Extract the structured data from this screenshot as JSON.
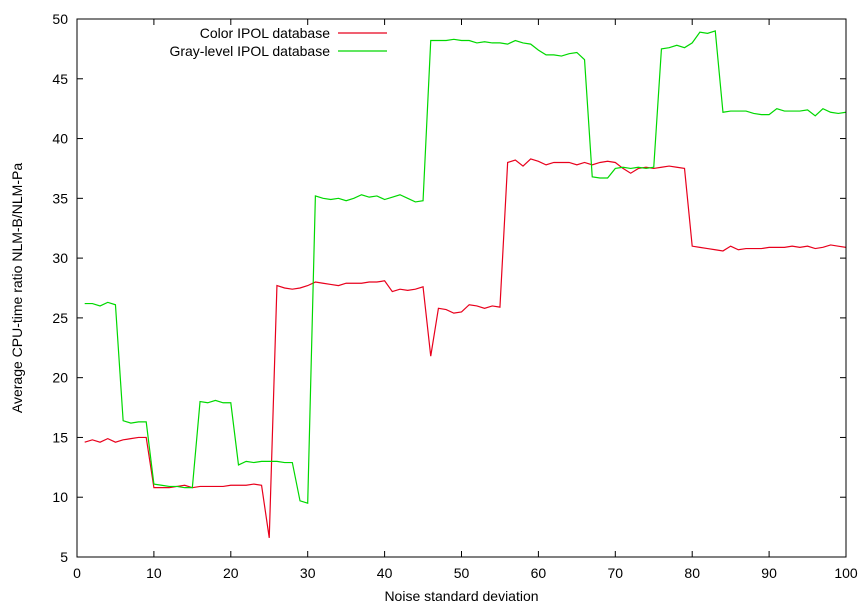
{
  "chart_data": {
    "type": "line",
    "title": "",
    "xlabel": "Noise standard deviation",
    "ylabel": "Average CPU-time ratio NLM-B/NLM-Pa",
    "xlim": [
      0,
      100
    ],
    "ylim": [
      5,
      50
    ],
    "xticks": [
      0,
      10,
      20,
      30,
      40,
      50,
      60,
      70,
      80,
      90,
      100
    ],
    "yticks": [
      5,
      10,
      15,
      20,
      25,
      30,
      35,
      40,
      45,
      50
    ],
    "grid": false,
    "legend_position": "top-left",
    "series": [
      {
        "name": "Color IPOL database",
        "color": "#e8001c",
        "x": [
          1,
          2,
          3,
          4,
          5,
          6,
          7,
          8,
          9,
          10,
          11,
          12,
          13,
          14,
          15,
          16,
          17,
          18,
          19,
          20,
          21,
          22,
          23,
          24,
          25,
          26,
          27,
          28,
          29,
          30,
          31,
          32,
          33,
          34,
          35,
          36,
          37,
          38,
          39,
          40,
          41,
          42,
          43,
          44,
          45,
          46,
          47,
          48,
          49,
          50,
          51,
          52,
          53,
          54,
          55,
          56,
          57,
          58,
          59,
          60,
          61,
          62,
          63,
          64,
          65,
          66,
          67,
          68,
          69,
          70,
          71,
          72,
          73,
          74,
          75,
          76,
          77,
          78,
          79,
          80,
          81,
          82,
          83,
          84,
          85,
          86,
          87,
          88,
          89,
          90,
          91,
          92,
          93,
          94,
          95,
          96,
          97,
          98,
          99,
          100
        ],
        "y": [
          14.6,
          14.8,
          14.6,
          14.9,
          14.6,
          14.8,
          14.9,
          15.0,
          15.0,
          10.8,
          10.8,
          10.8,
          10.9,
          11.0,
          10.8,
          10.9,
          10.9,
          10.9,
          10.9,
          11.0,
          11.0,
          11.0,
          11.1,
          11.0,
          6.6,
          27.7,
          27.5,
          27.4,
          27.5,
          27.7,
          28.0,
          27.9,
          27.8,
          27.7,
          27.9,
          27.9,
          27.9,
          28.0,
          28.0,
          28.1,
          27.2,
          27.4,
          27.3,
          27.4,
          27.6,
          21.8,
          25.8,
          25.7,
          25.4,
          25.5,
          26.1,
          26.0,
          25.8,
          26.0,
          25.9,
          38.0,
          38.2,
          37.7,
          38.3,
          38.1,
          37.8,
          38.0,
          38.0,
          38.0,
          37.8,
          38.0,
          37.8,
          38.0,
          38.1,
          38.0,
          37.5,
          37.1,
          37.5,
          37.6,
          37.5,
          37.6,
          37.7,
          37.6,
          37.5,
          31.0,
          30.9,
          30.8,
          30.7,
          30.6,
          31.0,
          30.7,
          30.8,
          30.8,
          30.8,
          30.9,
          30.9,
          30.9,
          31.0,
          30.9,
          31.0,
          30.8,
          30.9,
          31.1,
          31.0,
          30.9
        ]
      },
      {
        "name": "Gray-level IPOL database",
        "color": "#00d800",
        "x": [
          1,
          2,
          3,
          4,
          5,
          6,
          7,
          8,
          9,
          10,
          11,
          12,
          13,
          14,
          15,
          16,
          17,
          18,
          19,
          20,
          21,
          22,
          23,
          24,
          25,
          26,
          27,
          28,
          29,
          30,
          31,
          32,
          33,
          34,
          35,
          36,
          37,
          38,
          39,
          40,
          41,
          42,
          43,
          44,
          45,
          46,
          47,
          48,
          49,
          50,
          51,
          52,
          53,
          54,
          55,
          56,
          57,
          58,
          59,
          60,
          61,
          62,
          63,
          64,
          65,
          66,
          67,
          68,
          69,
          70,
          71,
          72,
          73,
          74,
          75,
          76,
          77,
          78,
          79,
          80,
          81,
          82,
          83,
          84,
          85,
          86,
          87,
          88,
          89,
          90,
          91,
          92,
          93,
          94,
          95,
          96,
          97,
          98,
          99,
          100
        ],
        "y": [
          26.2,
          26.2,
          26.0,
          26.3,
          26.1,
          16.4,
          16.2,
          16.3,
          16.3,
          11.1,
          11.0,
          10.9,
          10.9,
          10.8,
          10.8,
          18.0,
          17.9,
          18.1,
          17.9,
          17.9,
          12.7,
          13.0,
          12.9,
          13.0,
          13.0,
          13.0,
          12.9,
          12.9,
          9.7,
          9.5,
          35.2,
          35.0,
          34.9,
          35.0,
          34.8,
          35.0,
          35.3,
          35.1,
          35.2,
          34.9,
          35.1,
          35.3,
          35.0,
          34.7,
          34.8,
          48.2,
          48.2,
          48.2,
          48.3,
          48.2,
          48.2,
          48.0,
          48.1,
          48.0,
          48.0,
          47.9,
          48.2,
          48.0,
          47.9,
          47.4,
          47.0,
          47.0,
          46.9,
          47.1,
          47.2,
          46.6,
          36.8,
          36.7,
          36.7,
          37.5,
          37.6,
          37.5,
          37.6,
          37.5,
          37.6,
          47.5,
          47.6,
          47.8,
          47.6,
          48.0,
          48.9,
          48.8,
          49.0,
          42.2,
          42.3,
          42.3,
          42.3,
          42.1,
          42.0,
          42.0,
          42.5,
          42.3,
          42.3,
          42.3,
          42.4,
          41.9,
          42.5,
          42.2,
          42.1,
          42.2
        ]
      }
    ]
  }
}
